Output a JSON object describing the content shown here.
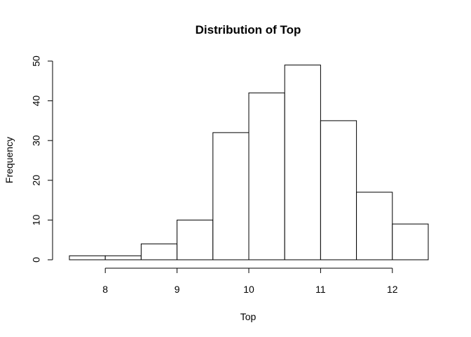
{
  "chart_data": {
    "type": "bar",
    "title": "Distribution of Top",
    "xlabel": "Top",
    "ylabel": "Frequency",
    "bins": [
      {
        "start": 7.5,
        "end": 8.0,
        "count": 1
      },
      {
        "start": 8.0,
        "end": 8.5,
        "count": 1
      },
      {
        "start": 8.5,
        "end": 9.0,
        "count": 4
      },
      {
        "start": 9.0,
        "end": 9.5,
        "count": 10
      },
      {
        "start": 9.5,
        "end": 10.0,
        "count": 32
      },
      {
        "start": 10.0,
        "end": 10.5,
        "count": 42
      },
      {
        "start": 10.5,
        "end": 11.0,
        "count": 49
      },
      {
        "start": 11.0,
        "end": 11.5,
        "count": 35
      },
      {
        "start": 11.5,
        "end": 12.0,
        "count": 17
      },
      {
        "start": 12.0,
        "end": 12.5,
        "count": 9
      }
    ],
    "xlim": [
      7.5,
      12.5
    ],
    "ylim": [
      0,
      50
    ],
    "x_ticks": [
      8,
      9,
      10,
      11,
      12
    ],
    "y_ticks": [
      0,
      10,
      20,
      30,
      40,
      50
    ],
    "grid": false,
    "legend": "none"
  }
}
